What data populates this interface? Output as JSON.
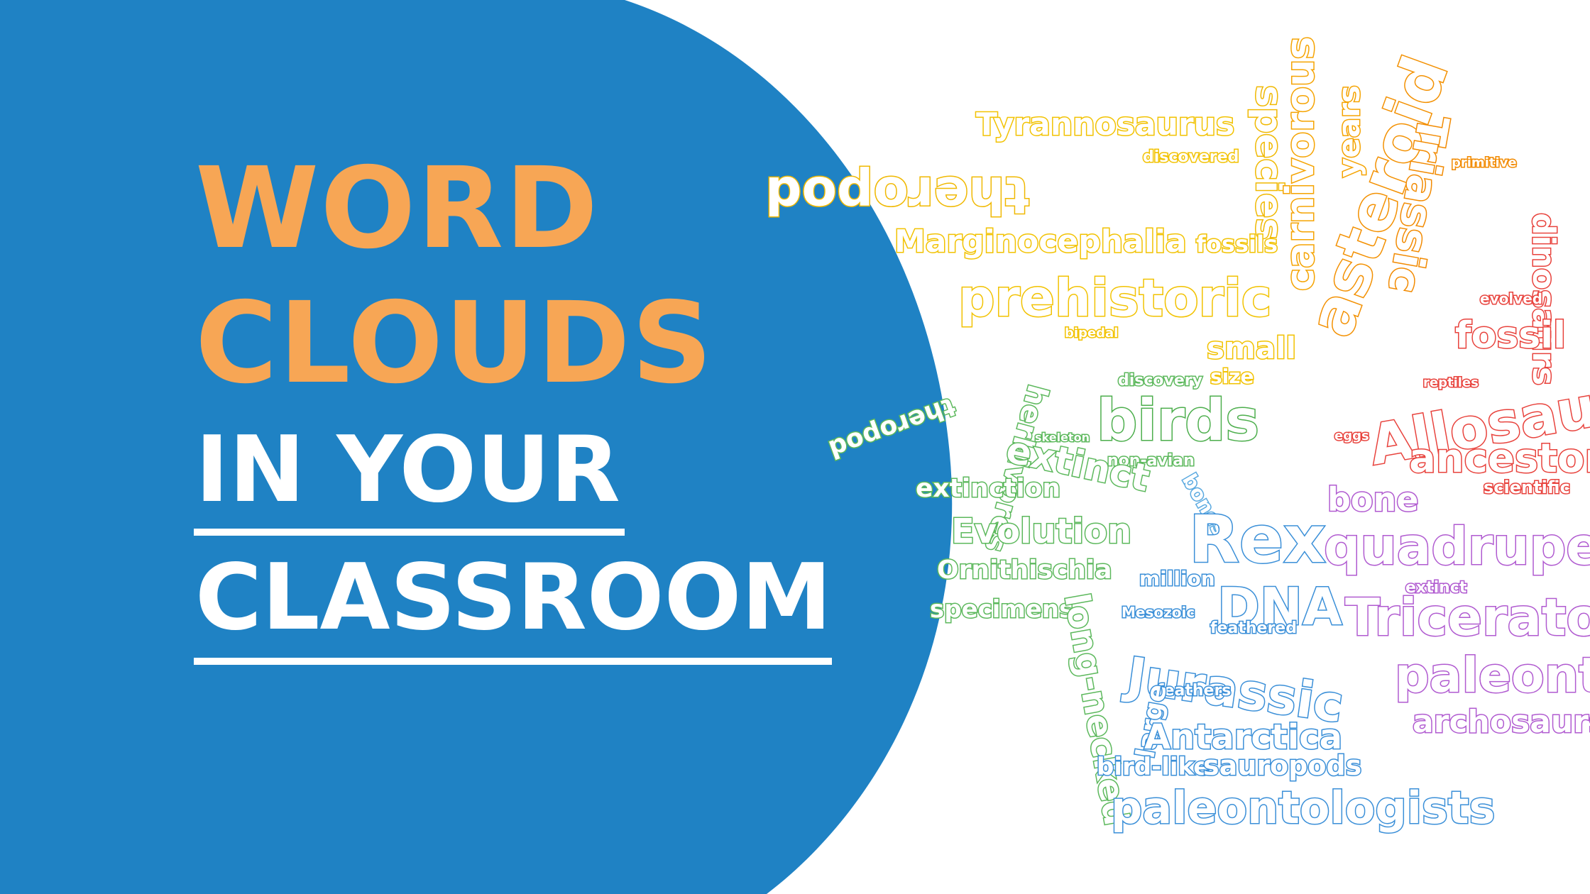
{
  "title": {
    "line1": "WORD",
    "line2": "CLOUDS",
    "line3": "IN YOUR",
    "line4": "CLASSROOM"
  },
  "colors": {
    "blue": "#1f82c4",
    "orange": "#f7a655",
    "white": "#ffffff"
  },
  "wordcloud": {
    "words": [
      {
        "text": "Tyrannosaurus",
        "color": "#f2c200"
      },
      {
        "text": "theropod",
        "color": "#f0b800"
      },
      {
        "text": "discovered",
        "color": "#f2c200"
      },
      {
        "text": "species",
        "color": "#f0b800"
      },
      {
        "text": "carnivorous",
        "color": "#f5a300"
      },
      {
        "text": "years",
        "color": "#f5a300"
      },
      {
        "text": "asteroid",
        "color": "#f39000"
      },
      {
        "text": "Triassic",
        "color": "#f28a00"
      },
      {
        "text": "primitive",
        "color": "#f28a00"
      },
      {
        "text": "Marginocephalia",
        "color": "#f2c200"
      },
      {
        "text": "fossils",
        "color": "#f2c200"
      },
      {
        "text": "prehistoric",
        "color": "#f2c200"
      },
      {
        "text": "small",
        "color": "#f2c200"
      },
      {
        "text": "size",
        "color": "#f2c200"
      },
      {
        "text": "bipedal",
        "color": "#f2c200"
      },
      {
        "text": "dinosaurs",
        "color": "#e8423c"
      },
      {
        "text": "evolved",
        "color": "#e8423c"
      },
      {
        "text": "fossil",
        "color": "#e8423c"
      },
      {
        "text": "reptiles",
        "color": "#e8423c"
      },
      {
        "text": "Allosaurus",
        "color": "#e8423c"
      },
      {
        "text": "eggs",
        "color": "#e8423c"
      },
      {
        "text": "ancestor",
        "color": "#e8423c"
      },
      {
        "text": "scientific",
        "color": "#e8423c"
      },
      {
        "text": "theropod",
        "color": "#5cb85c"
      },
      {
        "text": "herbivores",
        "color": "#5cb85c"
      },
      {
        "text": "discovery",
        "color": "#5cb85c"
      },
      {
        "text": "birds",
        "color": "#4cae4c"
      },
      {
        "text": "skeleton",
        "color": "#5cb85c"
      },
      {
        "text": "non-avian",
        "color": "#5cb85c"
      },
      {
        "text": "extinct",
        "color": "#5cb85c"
      },
      {
        "text": "extinction",
        "color": "#5cb85c"
      },
      {
        "text": "Evolution",
        "color": "#5cb85c"
      },
      {
        "text": "Ornithischia",
        "color": "#5cb85c"
      },
      {
        "text": "specimens",
        "color": "#5cb85c"
      },
      {
        "text": "long-necked",
        "color": "#5cb85c"
      },
      {
        "text": "bones",
        "color": "#5aa9e0"
      },
      {
        "text": "Rex",
        "color": "#3a8fd8"
      },
      {
        "text": "million",
        "color": "#3a8fd8"
      },
      {
        "text": "DNA",
        "color": "#3a8fd8"
      },
      {
        "text": "Mesozoic",
        "color": "#3a8fd8"
      },
      {
        "text": "feathered",
        "color": "#3a8fd8"
      },
      {
        "text": "Jurassic",
        "color": "#3a8fd8"
      },
      {
        "text": "feathers",
        "color": "#3a8fd8"
      },
      {
        "text": "large",
        "color": "#3a8fd8"
      },
      {
        "text": "Antarctica",
        "color": "#3a8fd8"
      },
      {
        "text": "bird-like",
        "color": "#3a8fd8"
      },
      {
        "text": "sauropods",
        "color": "#3a8fd8"
      },
      {
        "text": "paleontologists",
        "color": "#3a8fd8"
      },
      {
        "text": "bone",
        "color": "#b05ad0"
      },
      {
        "text": "quadruped",
        "color": "#b05ad0"
      },
      {
        "text": "extinct",
        "color": "#b05ad0"
      },
      {
        "text": "Triceratops",
        "color": "#b05ad0"
      },
      {
        "text": "paleontology",
        "color": "#b05ad0"
      },
      {
        "text": "archosaurs",
        "color": "#b05ad0"
      }
    ]
  }
}
